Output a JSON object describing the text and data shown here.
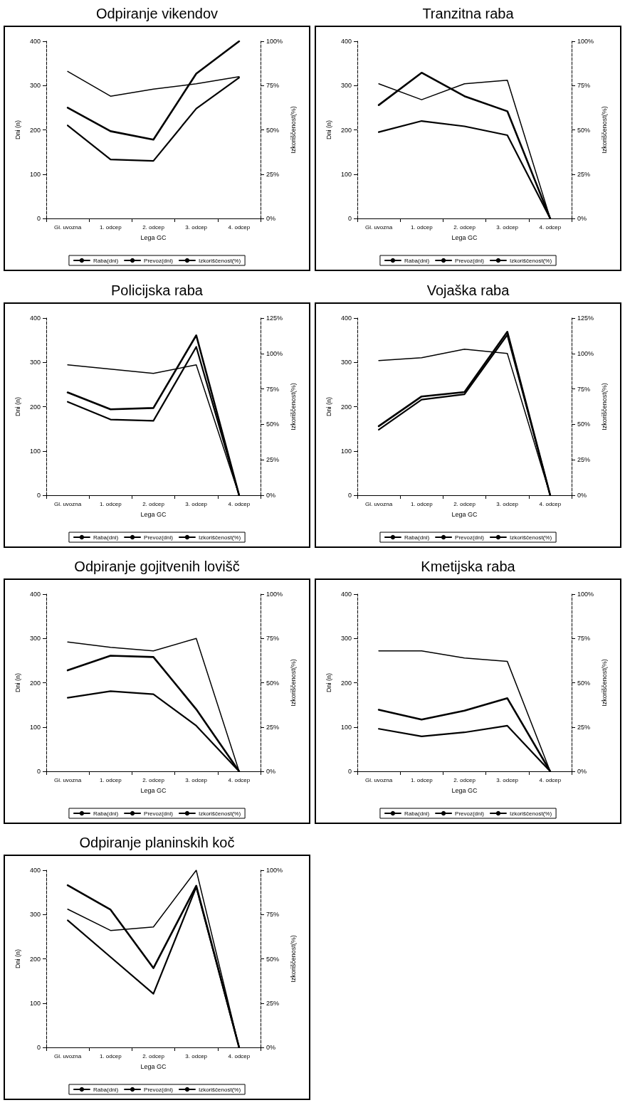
{
  "chart_data": [
    {
      "type": "line",
      "title": "Odpiranje vikendov",
      "xlabel": "Lega GC",
      "ylabel": "Dni (n)",
      "y2label": "Izkoriščenost(%)",
      "categories": [
        "Gl. uvozna",
        "1. odcep",
        "2. odcep",
        "3. odcep",
        "4. odcep"
      ],
      "legend": "bottom",
      "grid": false,
      "marker": "none",
      "ylim": [
        0,
        400
      ],
      "yticks": [
        0,
        100,
        200,
        300,
        400
      ],
      "y2lim": [
        0,
        100
      ],
      "y2ticks": [
        {
          "value": 0,
          "label": "0%"
        },
        {
          "value": 25,
          "label": "25%"
        },
        {
          "value": 50,
          "label": "50%"
        },
        {
          "value": 75,
          "label": "75%"
        },
        {
          "value": 100,
          "label": "100%"
        }
      ],
      "series": [
        {
          "name": "Raba(dni)",
          "color": "#000000",
          "values": [
            250,
            197,
            178,
            327,
            400
          ]
        },
        {
          "name": "Prevoz(dni)",
          "color": "#000000",
          "values": [
            210,
            133,
            130,
            248,
            318
          ]
        },
        {
          "name": "Izkoriščenost(%)",
          "color": "#000000",
          "axis": "y2",
          "values": [
            83,
            69,
            73,
            76,
            80
          ]
        }
      ]
    },
    {
      "type": "line",
      "title": "Tranzitna raba",
      "xlabel": "Lega GC",
      "ylabel": "Dni (n)",
      "y2label": "Izkoriščenost(%)",
      "categories": [
        "Gl. uvozna",
        "1. odcep",
        "2. odcep",
        "3. odcep",
        "4. odcep"
      ],
      "legend": "bottom",
      "grid": false,
      "marker": "none",
      "ylim": [
        0,
        400
      ],
      "yticks": [
        0,
        100,
        200,
        300,
        400
      ],
      "y2lim": [
        0,
        100
      ],
      "y2ticks": [
        {
          "value": 0,
          "label": "0%"
        },
        {
          "value": 25,
          "label": "25%"
        },
        {
          "value": 50,
          "label": "50%"
        },
        {
          "value": 75,
          "label": "75%"
        },
        {
          "value": 100,
          "label": "100%"
        }
      ],
      "series": [
        {
          "name": "Raba(dni)",
          "color": "#000000",
          "values": [
            256,
            329,
            276,
            242,
            0
          ]
        },
        {
          "name": "Prevoz(dni)",
          "color": "#000000",
          "values": [
            195,
            220,
            208,
            188,
            0
          ]
        },
        {
          "name": "Izkoriščenost(%)",
          "color": "#000000",
          "axis": "y2",
          "values": [
            76,
            67,
            76,
            78,
            0
          ]
        }
      ]
    },
    {
      "type": "line",
      "title": "Policijska raba",
      "xlabel": "Lega GC",
      "ylabel": "Dni (n)",
      "y2label": "Izkoriščenost(%)",
      "categories": [
        "Gl. uvozna",
        "1. odcep",
        "2. odcep",
        "3. odcep",
        "4. odcep"
      ],
      "legend": "bottom",
      "grid": false,
      "marker": "none",
      "ylim": [
        0,
        400
      ],
      "yticks": [
        0,
        100,
        200,
        300,
        400
      ],
      "y2lim": [
        0,
        125
      ],
      "y2ticks": [
        {
          "value": 0,
          "label": "0%"
        },
        {
          "value": 25,
          "label": "25%"
        },
        {
          "value": 50,
          "label": "50%"
        },
        {
          "value": 75,
          "label": "75%"
        },
        {
          "value": 100,
          "label": "100%"
        },
        {
          "value": 125,
          "label": "125%"
        }
      ],
      "series": [
        {
          "name": "Raba(dni)",
          "color": "#000000",
          "values": [
            232,
            194,
            197,
            361,
            0
          ]
        },
        {
          "name": "Prevoz(dni)",
          "color": "#000000",
          "values": [
            211,
            171,
            168,
            335,
            0
          ]
        },
        {
          "name": "Izkoriščenost(%)",
          "color": "#000000",
          "axis": "y2",
          "values": [
            92,
            89,
            86,
            92,
            0
          ]
        }
      ]
    },
    {
      "type": "line",
      "title": "Vojaška raba",
      "xlabel": "Lega GC",
      "ylabel": "Dni (n)",
      "y2label": "Izkoriščenost(%)",
      "categories": [
        "Gl. uvozna",
        "1. odcep",
        "2. odcep",
        "3. odcep",
        "4. odcep"
      ],
      "legend": "bottom",
      "grid": false,
      "marker": "none",
      "ylim": [
        0,
        400
      ],
      "yticks": [
        0,
        100,
        200,
        300,
        400
      ],
      "y2lim": [
        0,
        125
      ],
      "y2ticks": [
        {
          "value": 0,
          "label": "0%"
        },
        {
          "value": 25,
          "label": "25%"
        },
        {
          "value": 50,
          "label": "50%"
        },
        {
          "value": 75,
          "label": "75%"
        },
        {
          "value": 100,
          "label": "100%"
        },
        {
          "value": 125,
          "label": "125%"
        }
      ],
      "series": [
        {
          "name": "Raba(dni)",
          "color": "#000000",
          "values": [
            156,
            223,
            233,
            369,
            0
          ]
        },
        {
          "name": "Prevoz(dni)",
          "color": "#000000",
          "values": [
            148,
            216,
            228,
            362,
            0
          ]
        },
        {
          "name": "Izkoriščenost(%)",
          "color": "#000000",
          "axis": "y2",
          "values": [
            95,
            97,
            103,
            100,
            0
          ]
        }
      ]
    },
    {
      "type": "line",
      "title": "Odpiranje gojitvenih lovišč",
      "xlabel": "Lega GC",
      "ylabel": "Dni (n)",
      "y2label": "Izkoriščenost(%)",
      "categories": [
        "Gl. uvozna",
        "1. odcep",
        "2. odcep",
        "3. odcep",
        "4. odcep"
      ],
      "legend": "bottom",
      "grid": false,
      "marker": "none",
      "ylim": [
        0,
        400
      ],
      "yticks": [
        0,
        100,
        200,
        300,
        400
      ],
      "y2lim": [
        0,
        100
      ],
      "y2ticks": [
        {
          "value": 0,
          "label": "0%"
        },
        {
          "value": 25,
          "label": "25%"
        },
        {
          "value": 50,
          "label": "50%"
        },
        {
          "value": 75,
          "label": "75%"
        },
        {
          "value": 100,
          "label": "100%"
        }
      ],
      "series": [
        {
          "name": "Raba(dni)",
          "color": "#000000",
          "values": [
            228,
            261,
            258,
            140,
            0
          ]
        },
        {
          "name": "Prevoz(dni)",
          "color": "#000000",
          "values": [
            166,
            181,
            174,
            103,
            0
          ]
        },
        {
          "name": "Izkoriščenost(%)",
          "color": "#000000",
          "axis": "y2",
          "values": [
            73,
            70,
            68,
            75,
            0
          ]
        }
      ]
    },
    {
      "type": "line",
      "title": "Kmetijska raba",
      "xlabel": "Lega GC",
      "ylabel": "Dni (n)",
      "y2label": "Izkoriščenost(%)",
      "categories": [
        "Gl. uvozna",
        "1. odcep",
        "2. odcep",
        "3. odcep",
        "4. odcep"
      ],
      "legend": "bottom",
      "grid": false,
      "marker": "none",
      "ylim": [
        0,
        400
      ],
      "yticks": [
        0,
        100,
        200,
        300,
        400
      ],
      "y2lim": [
        0,
        100
      ],
      "y2ticks": [
        {
          "value": 0,
          "label": "0%"
        },
        {
          "value": 25,
          "label": "25%"
        },
        {
          "value": 50,
          "label": "50%"
        },
        {
          "value": 75,
          "label": "75%"
        },
        {
          "value": 100,
          "label": "100%"
        }
      ],
      "series": [
        {
          "name": "Raba(dni)",
          "color": "#000000",
          "values": [
            139,
            117,
            137,
            165,
            0
          ]
        },
        {
          "name": "Prevoz(dni)",
          "color": "#000000",
          "values": [
            96,
            79,
            88,
            103,
            0
          ]
        },
        {
          "name": "Izkoriščenost(%)",
          "color": "#000000",
          "axis": "y2",
          "values": [
            68,
            68,
            64,
            62,
            0
          ]
        }
      ]
    },
    {
      "type": "line",
      "title": "Odpiranje planinskih koč",
      "xlabel": "Lega GC",
      "ylabel": "Dni (n)",
      "y2label": "Izkoriščenost(%)",
      "categories": [
        "Gl. uvozna",
        "1. odcep",
        "2. odcep",
        "3. odcep",
        "4. odcep"
      ],
      "legend": "bottom",
      "grid": false,
      "marker": "none",
      "ylim": [
        0,
        400
      ],
      "yticks": [
        0,
        100,
        200,
        300,
        400
      ],
      "y2lim": [
        0,
        100
      ],
      "y2ticks": [
        {
          "value": 0,
          "label": "0%"
        },
        {
          "value": 25,
          "label": "25%"
        },
        {
          "value": 50,
          "label": "50%"
        },
        {
          "value": 75,
          "label": "75%"
        },
        {
          "value": 100,
          "label": "100%"
        }
      ],
      "series": [
        {
          "name": "Raba(dni)",
          "color": "#000000",
          "values": [
            366,
            311,
            179,
            365,
            0
          ]
        },
        {
          "name": "Prevoz(dni)",
          "color": "#000000",
          "values": [
            287,
            204,
            121,
            362,
            0
          ]
        },
        {
          "name": "Izkoriščenost(%)",
          "color": "#000000",
          "axis": "y2",
          "values": [
            78,
            66,
            68,
            100,
            0
          ]
        }
      ]
    }
  ]
}
